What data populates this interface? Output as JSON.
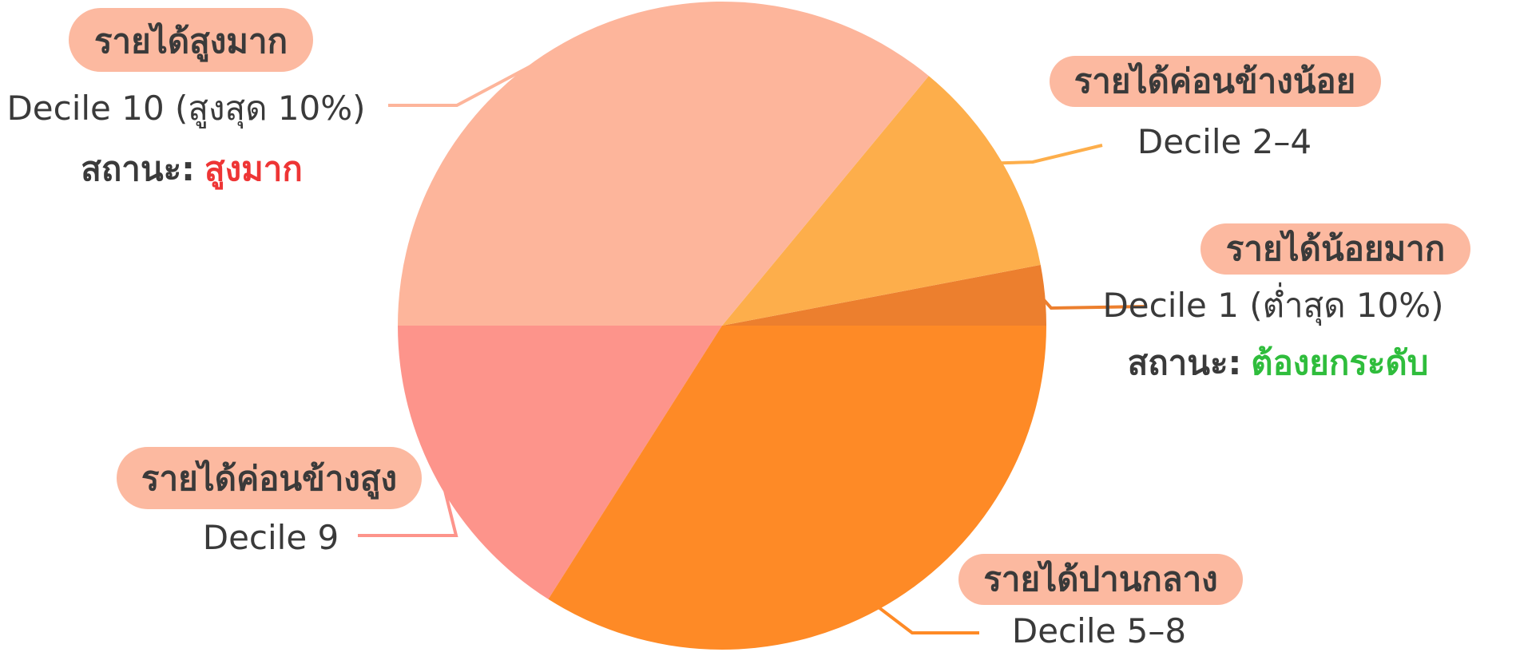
{
  "chart_data": {
    "type": "pie",
    "slices": [
      {
        "category": "รายได้น้อยมาก",
        "range": "Decile 1 (ต่ำสุด 10%)",
        "value": 3,
        "color": "#ec7f2e",
        "status_label": "สถานะ:",
        "status_value": "ต้องยกระดับ",
        "status_color": "#2fbd3c"
      },
      {
        "category": "รายได้ค่อนข้างน้อย",
        "range": "Decile 2–4",
        "value": 11,
        "color": "#fdae4b"
      },
      {
        "category": "รายได้สูงมาก",
        "range": "Decile 10 (สูงสุด 10%)",
        "value": 36,
        "color": "#fdb59b",
        "status_label": "สถานะ:",
        "status_value": "สูงมาก",
        "status_color": "#ee3535"
      },
      {
        "category": "รายได้ค่อนข้างสูง",
        "range": "Decile 9",
        "value": 16,
        "color": "#fd948b"
      },
      {
        "category": "รายได้ปานกลาง",
        "range": "Decile 5–8",
        "value": 34,
        "color": "#fe8a26"
      }
    ],
    "start_angle_deg": 0,
    "direction": "counterclockwise",
    "label_pill_color": "#fcb9a0"
  }
}
